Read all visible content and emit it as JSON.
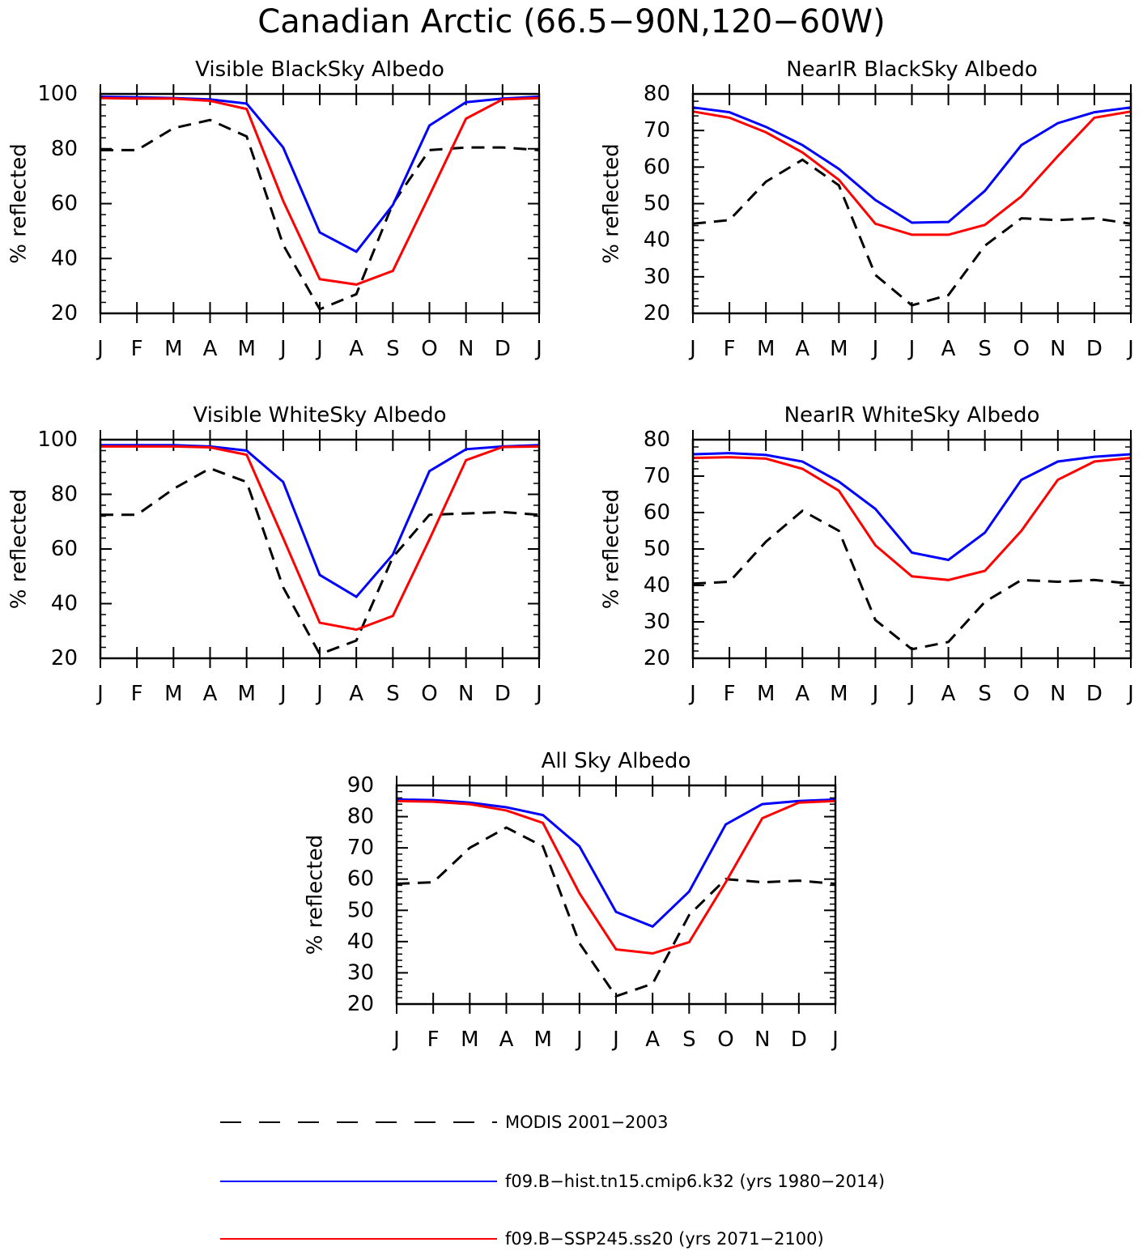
{
  "figure_title": "Canadian Arctic (66.5−90N,120−60W)",
  "colors": {
    "modis": "#000000",
    "hist": "#0000ff",
    "ssp": "#ff0000"
  },
  "legend": [
    {
      "key": "modis",
      "label": "MODIS 2001−2003",
      "style": "dashed"
    },
    {
      "key": "hist",
      "label": "f09.B−hist.tn15.cmip6.k32 (yrs 1980−2014)",
      "style": "solid"
    },
    {
      "key": "ssp",
      "label": "f09.B−SSP245.ss20 (yrs 2071−2100)",
      "style": "solid"
    }
  ],
  "chart_data": [
    {
      "type": "line",
      "title": "Visible BlackSky Albedo",
      "ylabel": "% reflected",
      "categories": [
        "J",
        "F",
        "M",
        "A",
        "M",
        "J",
        "J",
        "A",
        "S",
        "O",
        "N",
        "D",
        "J"
      ],
      "ylim": [
        20,
        100
      ],
      "yticks": [
        20,
        40,
        60,
        80,
        100
      ],
      "series": [
        {
          "key": "modis",
          "values": [
            79.5,
            79.5,
            87.5,
            90.5,
            84.5,
            45,
            21.5,
            27,
            60,
            79.5,
            80.5,
            80.5,
            79.5
          ]
        },
        {
          "key": "hist",
          "values": [
            99,
            98.8,
            98.5,
            98,
            96.5,
            80.5,
            49.5,
            42.5,
            59.5,
            88.5,
            97,
            98.3,
            99
          ]
        },
        {
          "key": "ssp",
          "values": [
            98.5,
            98.3,
            98.3,
            97.5,
            94.5,
            61,
            32.5,
            30.5,
            35.5,
            63,
            91,
            98,
            98.5
          ]
        }
      ]
    },
    {
      "type": "line",
      "title": "NearIR BlackSky Albedo",
      "ylabel": "% reflected",
      "categories": [
        "J",
        "F",
        "M",
        "A",
        "M",
        "J",
        "J",
        "A",
        "S",
        "O",
        "N",
        "D",
        "J"
      ],
      "ylim": [
        20,
        80
      ],
      "yticks": [
        20,
        30,
        40,
        50,
        60,
        70,
        80
      ],
      "series": [
        {
          "key": "modis",
          "values": [
            44.5,
            45.5,
            56,
            62,
            55,
            30.5,
            22.2,
            25,
            38.5,
            46,
            45.5,
            46,
            44.5
          ]
        },
        {
          "key": "hist",
          "values": [
            76.3,
            75,
            71,
            66,
            59.5,
            51,
            44.8,
            45,
            53.5,
            66,
            72,
            75,
            76.3
          ]
        },
        {
          "key": "ssp",
          "values": [
            75.2,
            73.5,
            69.5,
            64,
            56.5,
            44.5,
            41.5,
            41.5,
            44.2,
            52,
            63,
            73.5,
            75.2
          ]
        }
      ]
    },
    {
      "type": "line",
      "title": "Visible WhiteSky Albedo",
      "ylabel": "% reflected",
      "categories": [
        "J",
        "F",
        "M",
        "A",
        "M",
        "J",
        "J",
        "A",
        "S",
        "O",
        "N",
        "D",
        "J"
      ],
      "ylim": [
        20,
        100
      ],
      "yticks": [
        20,
        40,
        60,
        80,
        100
      ],
      "series": [
        {
          "key": "modis",
          "values": [
            72.5,
            72.5,
            82,
            89.5,
            84.5,
            46,
            21.5,
            26.5,
            57,
            72.5,
            73,
            73.5,
            72.5
          ]
        },
        {
          "key": "hist",
          "values": [
            98,
            98,
            98,
            97.5,
            96,
            84.5,
            50.5,
            42.5,
            58,
            88.5,
            96.5,
            97.5,
            98
          ]
        },
        {
          "key": "ssp",
          "values": [
            97.5,
            97.5,
            97.5,
            97.2,
            94.5,
            64,
            33,
            30.5,
            35.5,
            63.5,
            92.5,
            97.3,
            97.5
          ]
        }
      ]
    },
    {
      "type": "line",
      "title": "NearIR WhiteSky Albedo",
      "ylabel": "% reflected",
      "categories": [
        "J",
        "F",
        "M",
        "A",
        "M",
        "J",
        "J",
        "A",
        "S",
        "O",
        "N",
        "D",
        "J"
      ],
      "ylim": [
        20,
        80
      ],
      "yticks": [
        20,
        30,
        40,
        50,
        60,
        70,
        80
      ],
      "series": [
        {
          "key": "modis",
          "values": [
            40.5,
            41,
            52,
            60.5,
            55,
            30.5,
            22.5,
            24.5,
            35.5,
            41.5,
            41,
            41.5,
            40.5
          ]
        },
        {
          "key": "hist",
          "values": [
            76,
            76.3,
            75.8,
            74,
            68.5,
            61,
            49,
            47,
            54.5,
            69,
            74,
            75.3,
            76
          ]
        },
        {
          "key": "ssp",
          "values": [
            75,
            75.2,
            74.8,
            72,
            66,
            51,
            42.5,
            41.5,
            44,
            55,
            69,
            74,
            75
          ]
        }
      ]
    },
    {
      "type": "line",
      "title": "All Sky Albedo",
      "ylabel": "% reflected",
      "categories": [
        "J",
        "F",
        "M",
        "A",
        "M",
        "J",
        "J",
        "A",
        "S",
        "O",
        "N",
        "D",
        "J"
      ],
      "ylim": [
        20,
        90
      ],
      "yticks": [
        20,
        30,
        40,
        50,
        60,
        70,
        80,
        90
      ],
      "series": [
        {
          "key": "modis",
          "values": [
            58.5,
            59,
            70,
            76.5,
            70.5,
            39.5,
            22.5,
            26.5,
            48.5,
            60,
            59,
            59.5,
            58.5
          ]
        },
        {
          "key": "hist",
          "values": [
            85.5,
            85.3,
            84.5,
            83,
            80.5,
            70.5,
            49.5,
            44.8,
            56,
            77.5,
            84,
            85,
            85.5
          ]
        },
        {
          "key": "ssp",
          "values": [
            85,
            84.8,
            84,
            82,
            78,
            55.5,
            37.5,
            36.2,
            39.8,
            59,
            79.5,
            84.5,
            85
          ]
        }
      ]
    }
  ]
}
